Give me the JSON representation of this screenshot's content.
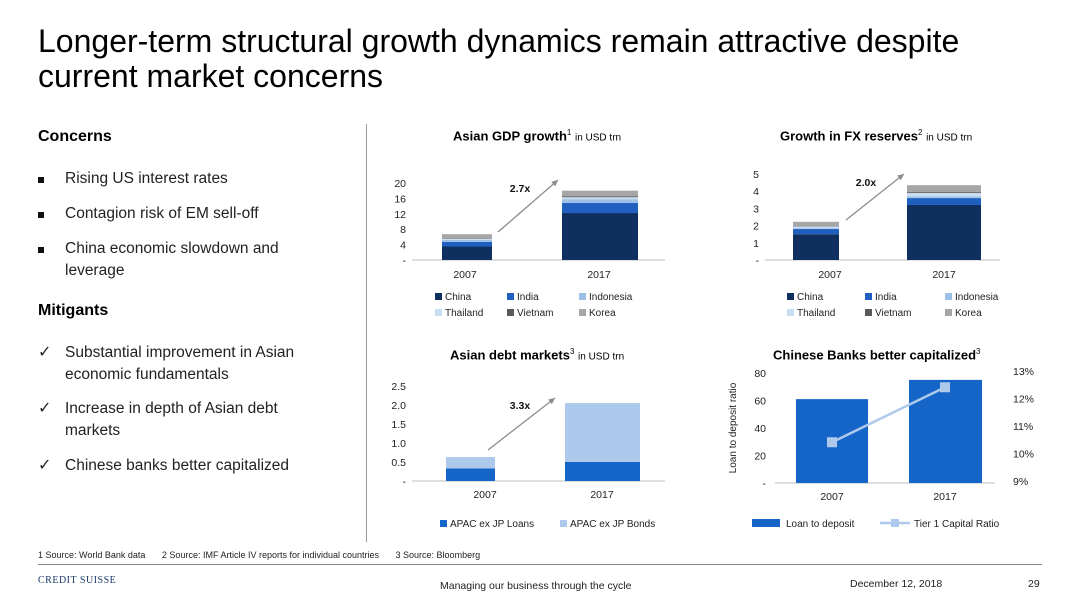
{
  "title": "Longer-term structural growth dynamics remain attractive despite current market concerns",
  "concerns": {
    "heading": "Concerns",
    "items": [
      "Rising US interest rates",
      "Contagion risk of EM sell-off",
      "China economic slowdown and leverage"
    ]
  },
  "mitigants": {
    "heading": "Mitigants",
    "items": [
      "Substantial improvement in Asian economic fundamentals",
      "Increase in depth of Asian debt markets",
      "Chinese banks better capitalized"
    ]
  },
  "colors": {
    "China": "#0f2f5f",
    "India": "#1f5fc0",
    "Indonesia": "#9ec0e6",
    "Thailand": "#c8dcf2",
    "Vietnam": "#595959",
    "Korea": "#a6a6a6",
    "Loans": "#1565c8",
    "Bonds": "#adc9ec",
    "Tier1": "#adc9ec"
  },
  "chart_data": [
    {
      "id": "gdp",
      "type": "bar",
      "title": "Asian GDP growth",
      "title_sup": "1",
      "unit": "in USD trn",
      "categories": [
        "2007",
        "2017"
      ],
      "y_ticks": [
        "-",
        "4",
        "8",
        "12",
        "16",
        "20"
      ],
      "ylim": [
        0,
        20
      ],
      "annotation": "2.7x",
      "stacked": true,
      "series": [
        {
          "name": "China",
          "values": [
            3.5,
            12.2
          ]
        },
        {
          "name": "India",
          "values": [
            1.2,
            2.6
          ]
        },
        {
          "name": "Indonesia",
          "values": [
            0.5,
            1.0
          ]
        },
        {
          "name": "Thailand",
          "values": [
            0.3,
            0.5
          ]
        },
        {
          "name": "Vietnam",
          "values": [
            0.1,
            0.2
          ]
        },
        {
          "name": "Korea",
          "values": [
            1.1,
            1.5
          ]
        }
      ]
    },
    {
      "id": "fx",
      "type": "bar",
      "title": "Growth in FX reserves",
      "title_sup": "2",
      "unit": "in USD trn",
      "categories": [
        "2007",
        "2017"
      ],
      "y_ticks": [
        "-",
        "1",
        "2",
        "3",
        "4",
        "5"
      ],
      "ylim": [
        0,
        5
      ],
      "annotation": "2.0x",
      "stacked": true,
      "series": [
        {
          "name": "China",
          "values": [
            1.5,
            3.2
          ]
        },
        {
          "name": "India",
          "values": [
            0.3,
            0.4
          ]
        },
        {
          "name": "Indonesia",
          "values": [
            0.05,
            0.1
          ]
        },
        {
          "name": "Thailand",
          "values": [
            0.1,
            0.2
          ]
        },
        {
          "name": "Vietnam",
          "values": [
            0.02,
            0.05
          ]
        },
        {
          "name": "Korea",
          "values": [
            0.25,
            0.4
          ]
        }
      ]
    },
    {
      "id": "debt",
      "type": "bar",
      "title": "Asian debt markets",
      "title_sup": "3",
      "unit": "in USD trn",
      "categories": [
        "2007",
        "2017"
      ],
      "y_ticks": [
        "-",
        "0.5",
        "1.0",
        "1.5",
        "2.0",
        "2.5"
      ],
      "ylim": [
        0,
        2.5
      ],
      "annotation": "3.3x",
      "stacked": true,
      "series": [
        {
          "name": "APAC ex JP Loans",
          "values": [
            0.33,
            0.5
          ]
        },
        {
          "name": "APAC ex JP Bonds",
          "values": [
            0.3,
            1.55
          ]
        }
      ]
    },
    {
      "id": "banks",
      "type": "bar",
      "title": "Chinese Banks better capitalized",
      "title_sup": "3",
      "categories": [
        "2007",
        "2017"
      ],
      "ylabel": "Loan to deposit ratio",
      "y_ticks": [
        "-",
        "20",
        "40",
        "60",
        "80"
      ],
      "ylim": [
        0,
        80
      ],
      "y2_ticks": [
        "9%",
        "10%",
        "11%",
        "12%",
        "13%"
      ],
      "y2lim": [
        9,
        13
      ],
      "series": [
        {
          "name": "Loan to deposit",
          "type": "bar",
          "values": [
            61,
            75
          ]
        },
        {
          "name": "Tier 1 Capital Ratio",
          "type": "line",
          "values": [
            10.7,
            12.7
          ]
        }
      ]
    }
  ],
  "footnotes": [
    "1 Source: World Bank data",
    "2 Source: IMF Article IV reports for individual countries",
    "3 Source: Bloomberg"
  ],
  "footer": {
    "logo": "CREDIT SUISSE",
    "center": "Managing our business through the cycle",
    "date": "December 12, 2018",
    "page": "29"
  }
}
